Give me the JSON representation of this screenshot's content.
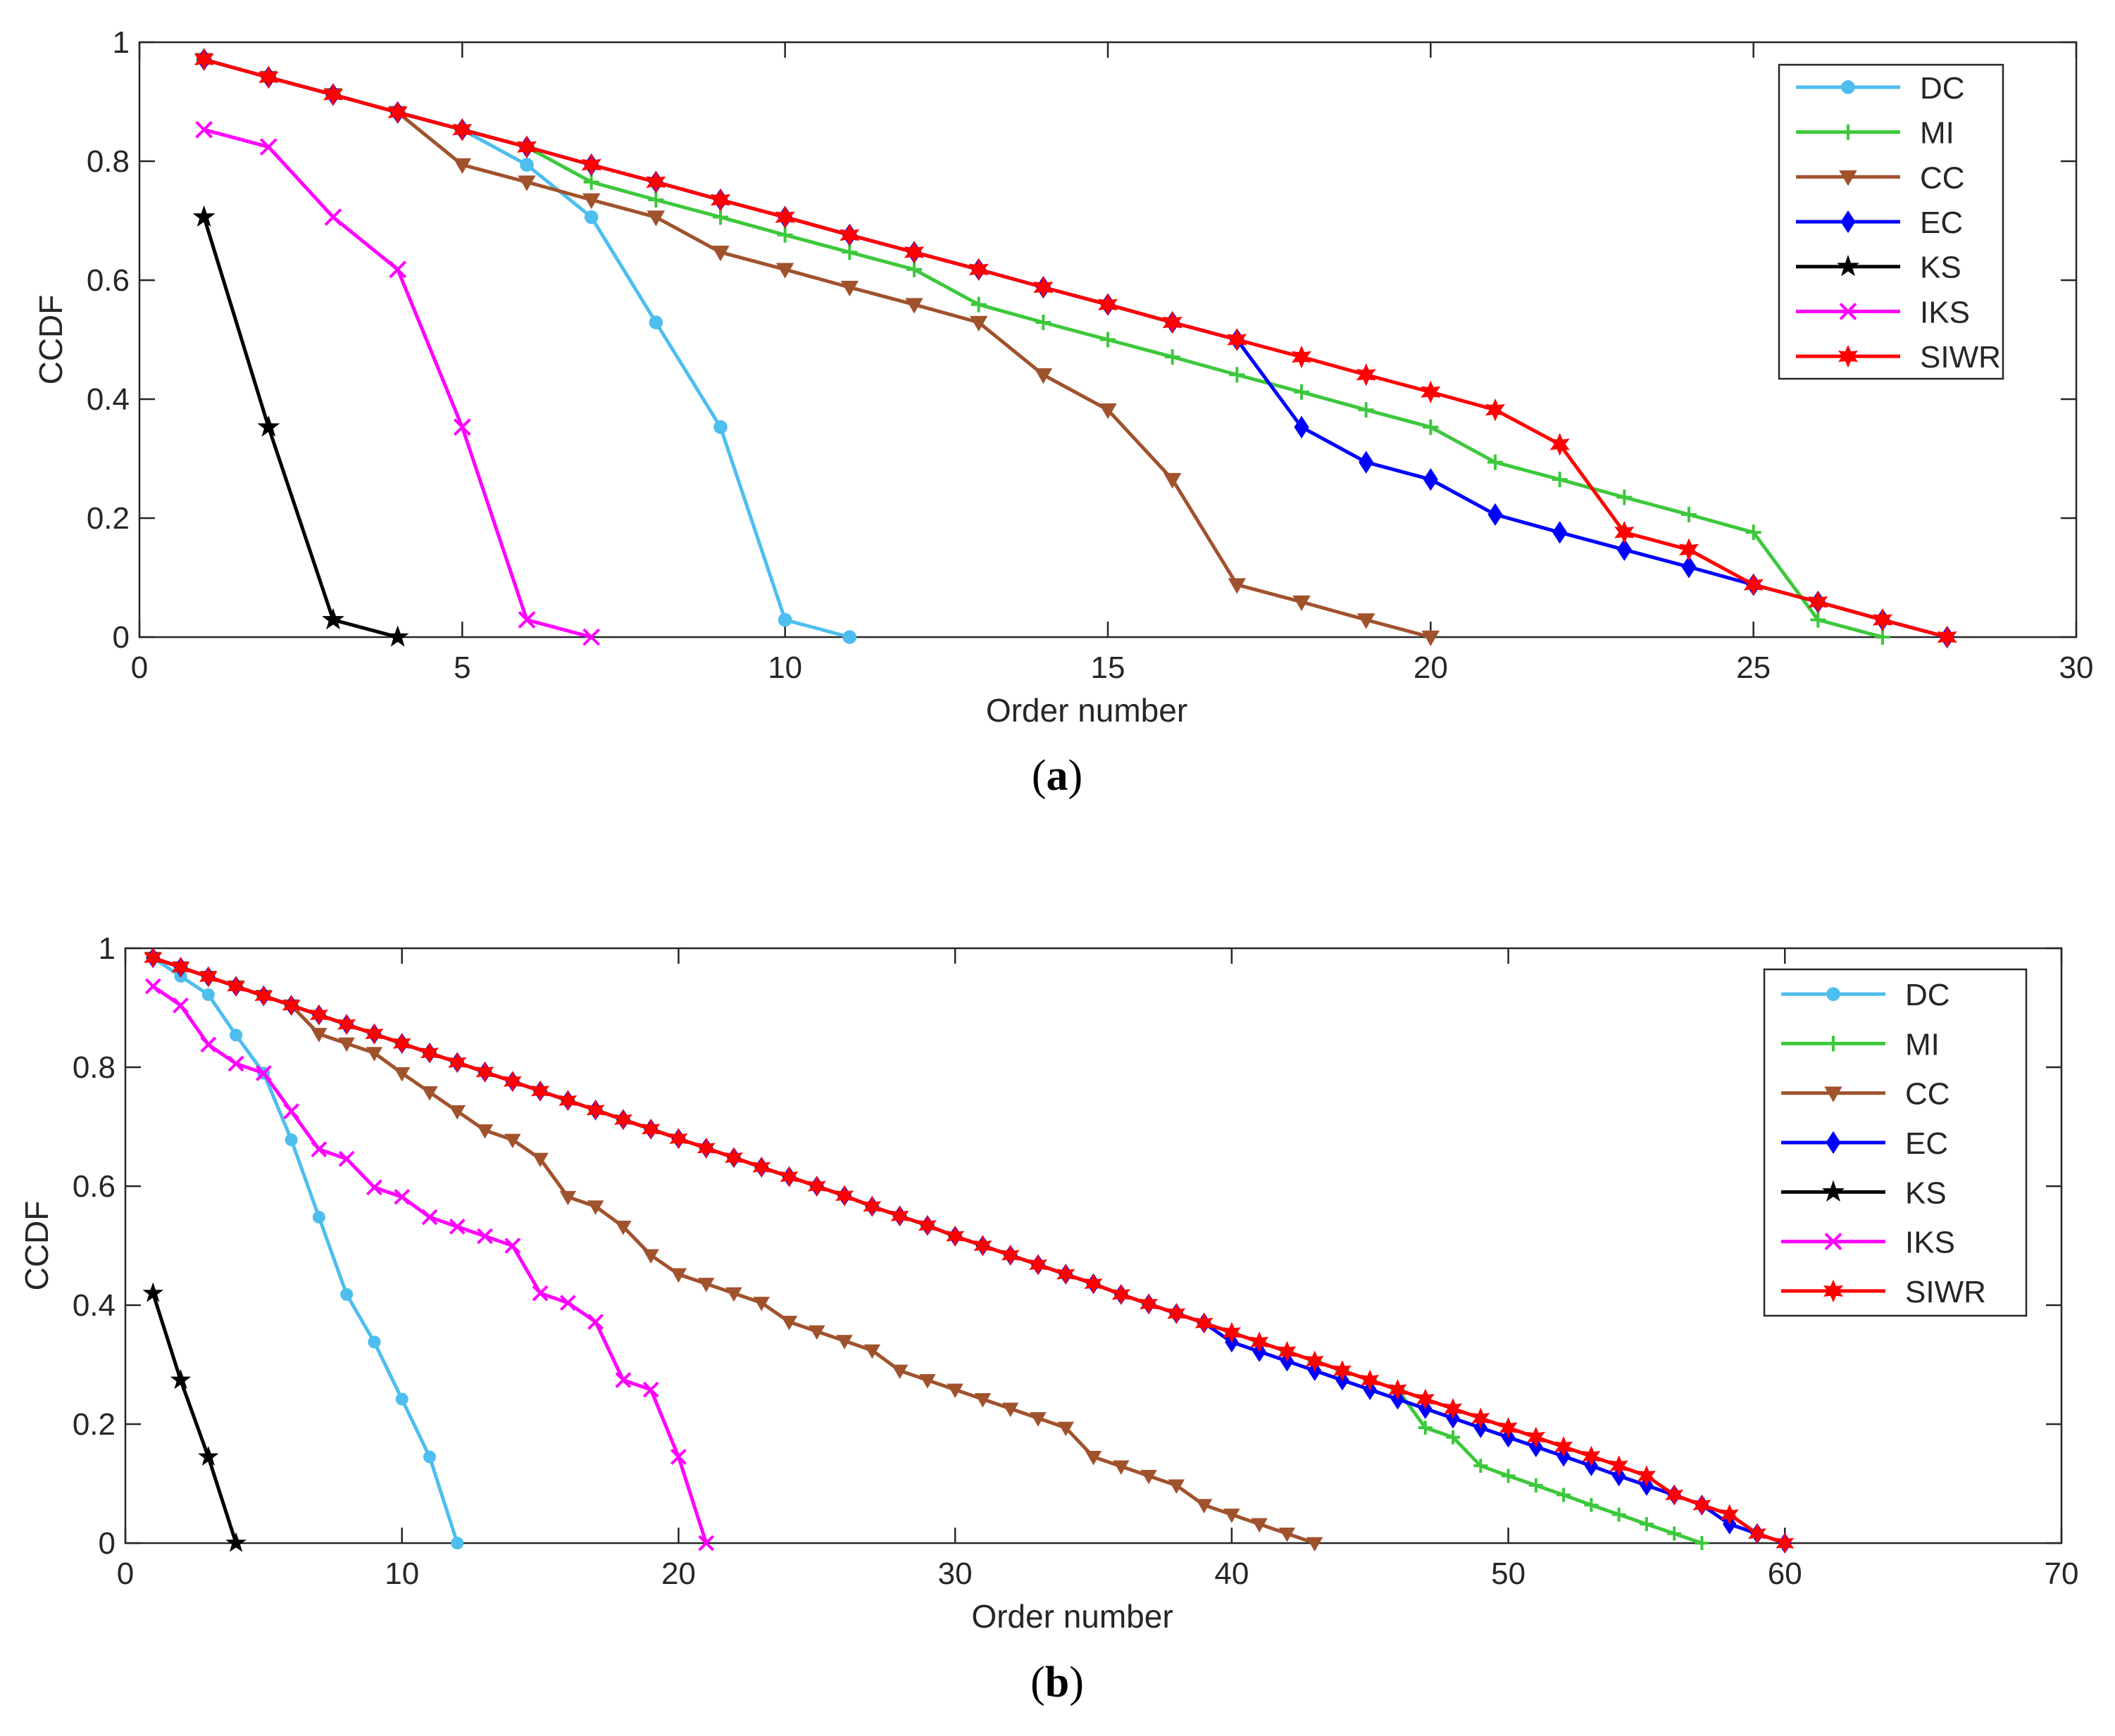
{
  "series_style": {
    "DC": {
      "color": "#4DBEEE",
      "marker": "circle"
    },
    "MI": {
      "color": "#3CC83C",
      "marker": "plus"
    },
    "CC": {
      "color": "#A0522D",
      "marker": "triangle-down"
    },
    "EC": {
      "color": "#0000FF",
      "marker": "diamond"
    },
    "KS": {
      "color": "#000000",
      "marker": "star"
    },
    "IKS": {
      "color": "#FF00FF",
      "marker": "cross"
    },
    "SIWR": {
      "color": "#FF0000",
      "marker": "hexagram"
    }
  },
  "chart_data": [
    {
      "type": "line",
      "panel_label": "(a)",
      "xlabel": "Order number",
      "ylabel": "CCDF",
      "xlim": [
        0,
        30
      ],
      "ylim": [
        0,
        1
      ],
      "xticks": [
        0,
        5,
        10,
        15,
        20,
        25,
        30
      ],
      "yticks": [
        0,
        0.2,
        0.4,
        0.6,
        0.8,
        1
      ],
      "ytick_labels": [
        "0",
        "0.2",
        "0.4",
        "0.6",
        "0.8",
        "1"
      ],
      "legend_position": "top-right",
      "series": [
        {
          "name": "DC",
          "x": [
            1,
            2,
            3,
            4,
            5,
            6,
            7,
            8,
            9,
            10,
            11
          ],
          "values": [
            0.971,
            0.941,
            0.912,
            0.882,
            0.853,
            0.794,
            0.706,
            0.529,
            0.353,
            0.029,
            0.0
          ]
        },
        {
          "name": "MI",
          "x": [
            1,
            2,
            3,
            4,
            5,
            6,
            7,
            8,
            9,
            10,
            11,
            12,
            13,
            14,
            15,
            16,
            17,
            18,
            19,
            20,
            21,
            22,
            23,
            24,
            25,
            26,
            27
          ],
          "values": [
            0.971,
            0.941,
            0.912,
            0.882,
            0.853,
            0.824,
            0.765,
            0.735,
            0.706,
            0.676,
            0.647,
            0.618,
            0.559,
            0.529,
            0.5,
            0.471,
            0.441,
            0.412,
            0.382,
            0.353,
            0.294,
            0.265,
            0.235,
            0.206,
            0.176,
            0.029,
            0.0
          ]
        },
        {
          "name": "CC",
          "x": [
            1,
            2,
            3,
            4,
            5,
            6,
            7,
            8,
            9,
            10,
            11,
            12,
            13,
            14,
            15,
            16,
            17,
            18,
            19,
            20
          ],
          "values": [
            0.971,
            0.941,
            0.912,
            0.882,
            0.794,
            0.765,
            0.735,
            0.706,
            0.647,
            0.618,
            0.588,
            0.559,
            0.529,
            0.441,
            0.382,
            0.265,
            0.088,
            0.059,
            0.029,
            0.0
          ]
        },
        {
          "name": "EC",
          "x": [
            1,
            2,
            3,
            4,
            5,
            6,
            7,
            8,
            9,
            10,
            11,
            12,
            13,
            14,
            15,
            16,
            17,
            18,
            19,
            20,
            21,
            22,
            23,
            24,
            25,
            26,
            27,
            28
          ],
          "values": [
            0.971,
            0.941,
            0.912,
            0.882,
            0.853,
            0.824,
            0.794,
            0.765,
            0.735,
            0.706,
            0.676,
            0.647,
            0.618,
            0.588,
            0.559,
            0.529,
            0.5,
            0.353,
            0.294,
            0.265,
            0.206,
            0.176,
            0.147,
            0.118,
            0.088,
            0.059,
            0.029,
            0.0
          ]
        },
        {
          "name": "KS",
          "x": [
            1,
            2,
            3,
            4
          ],
          "values": [
            0.706,
            0.353,
            0.029,
            0.0
          ]
        },
        {
          "name": "IKS",
          "x": [
            1,
            2,
            3,
            4,
            5,
            6,
            7
          ],
          "values": [
            0.853,
            0.824,
            0.706,
            0.618,
            0.353,
            0.029,
            0.0
          ]
        },
        {
          "name": "SIWR",
          "x": [
            1,
            2,
            3,
            4,
            5,
            6,
            7,
            8,
            9,
            10,
            11,
            12,
            13,
            14,
            15,
            16,
            17,
            18,
            19,
            20,
            21,
            22,
            23,
            24,
            25,
            26,
            27,
            28
          ],
          "values": [
            0.971,
            0.941,
            0.912,
            0.882,
            0.853,
            0.824,
            0.794,
            0.765,
            0.735,
            0.706,
            0.676,
            0.647,
            0.618,
            0.588,
            0.559,
            0.529,
            0.5,
            0.471,
            0.441,
            0.412,
            0.382,
            0.324,
            0.176,
            0.147,
            0.088,
            0.059,
            0.029,
            0.0
          ]
        }
      ]
    },
    {
      "type": "line",
      "panel_label": "(b)",
      "xlabel": "Order number",
      "ylabel": "CCDF",
      "xlim": [
        0,
        70
      ],
      "ylim": [
        0,
        1
      ],
      "xticks": [
        0,
        10,
        20,
        30,
        40,
        50,
        60,
        70
      ],
      "yticks": [
        0,
        0.2,
        0.4,
        0.6,
        0.8,
        1
      ],
      "ytick_labels": [
        "0",
        "0.2",
        "0.4",
        "0.6",
        "0.8",
        "1"
      ],
      "legend_position": "top-right",
      "series": [
        {
          "name": "DC",
          "x": [
            1,
            2,
            3,
            4,
            5,
            6,
            7,
            8,
            9,
            10,
            11,
            12
          ],
          "values": [
            0.984,
            0.953,
            0.922,
            0.854,
            0.79,
            0.678,
            0.548,
            0.418,
            0.338,
            0.242,
            0.145,
            0.0
          ]
        },
        {
          "name": "MI",
          "x": [
            1,
            2,
            3,
            4,
            5,
            6,
            7,
            8,
            9,
            10,
            11,
            12,
            13,
            14,
            15,
            16,
            17,
            18,
            19,
            20,
            21,
            22,
            23,
            24,
            25,
            26,
            27,
            28,
            29,
            30,
            31,
            32,
            33,
            34,
            35,
            36,
            37,
            38,
            39,
            40,
            41,
            42,
            43,
            44,
            45,
            46,
            47,
            48,
            49,
            50,
            51,
            52,
            53,
            54,
            55,
            56,
            57
          ],
          "values": [
            0.984,
            0.968,
            0.952,
            0.936,
            0.92,
            0.904,
            0.888,
            0.872,
            0.856,
            0.84,
            0.824,
            0.808,
            0.792,
            0.776,
            0.76,
            0.744,
            0.728,
            0.712,
            0.696,
            0.68,
            0.664,
            0.648,
            0.632,
            0.616,
            0.6,
            0.584,
            0.566,
            0.55,
            0.534,
            0.516,
            0.5,
            0.484,
            0.468,
            0.452,
            0.436,
            0.418,
            0.402,
            0.386,
            0.37,
            0.354,
            0.338,
            0.322,
            0.306,
            0.29,
            0.274,
            0.258,
            0.194,
            0.178,
            0.13,
            0.113,
            0.097,
            0.081,
            0.064,
            0.048,
            0.032,
            0.016,
            0.0
          ]
        },
        {
          "name": "CC",
          "x": [
            1,
            2,
            3,
            4,
            5,
            6,
            7,
            8,
            9,
            10,
            11,
            12,
            13,
            14,
            15,
            16,
            17,
            18,
            19,
            20,
            21,
            22,
            23,
            24,
            25,
            26,
            27,
            28,
            29,
            30,
            31,
            32,
            33,
            34,
            35,
            36,
            37,
            38,
            39,
            40,
            41,
            42,
            43
          ],
          "values": [
            0.984,
            0.968,
            0.952,
            0.936,
            0.92,
            0.904,
            0.856,
            0.84,
            0.824,
            0.79,
            0.758,
            0.726,
            0.694,
            0.678,
            0.646,
            0.582,
            0.566,
            0.532,
            0.484,
            0.452,
            0.436,
            0.42,
            0.404,
            0.372,
            0.356,
            0.34,
            0.324,
            0.29,
            0.274,
            0.258,
            0.242,
            0.226,
            0.21,
            0.194,
            0.145,
            0.129,
            0.113,
            0.097,
            0.064,
            0.048,
            0.032,
            0.016,
            0.0
          ]
        },
        {
          "name": "EC",
          "x": [
            1,
            2,
            3,
            4,
            5,
            6,
            7,
            8,
            9,
            10,
            11,
            12,
            13,
            14,
            15,
            16,
            17,
            18,
            19,
            20,
            21,
            22,
            23,
            24,
            25,
            26,
            27,
            28,
            29,
            30,
            31,
            32,
            33,
            34,
            35,
            36,
            37,
            38,
            39,
            40,
            41,
            42,
            43,
            44,
            45,
            46,
            47,
            48,
            49,
            50,
            51,
            52,
            53,
            54,
            55,
            56,
            57,
            58,
            59,
            60
          ],
          "values": [
            0.984,
            0.968,
            0.952,
            0.936,
            0.92,
            0.904,
            0.888,
            0.872,
            0.856,
            0.84,
            0.824,
            0.808,
            0.792,
            0.776,
            0.76,
            0.744,
            0.728,
            0.712,
            0.696,
            0.68,
            0.664,
            0.648,
            0.632,
            0.616,
            0.6,
            0.584,
            0.566,
            0.55,
            0.534,
            0.516,
            0.5,
            0.484,
            0.468,
            0.452,
            0.436,
            0.418,
            0.402,
            0.386,
            0.37,
            0.338,
            0.322,
            0.306,
            0.29,
            0.274,
            0.258,
            0.242,
            0.226,
            0.21,
            0.194,
            0.178,
            0.162,
            0.146,
            0.13,
            0.113,
            0.097,
            0.081,
            0.064,
            0.032,
            0.016,
            0.0
          ]
        },
        {
          "name": "KS",
          "x": [
            1,
            2,
            3,
            4
          ],
          "values": [
            0.42,
            0.274,
            0.145,
            0.0
          ]
        },
        {
          "name": "IKS",
          "x": [
            1,
            2,
            3,
            4,
            5,
            6,
            7,
            8,
            9,
            10,
            11,
            12,
            13,
            14,
            15,
            16,
            17,
            18,
            19,
            20,
            21
          ],
          "values": [
            0.936,
            0.904,
            0.838,
            0.806,
            0.79,
            0.726,
            0.662,
            0.646,
            0.598,
            0.582,
            0.548,
            0.532,
            0.516,
            0.5,
            0.42,
            0.404,
            0.372,
            0.274,
            0.258,
            0.145,
            0.0
          ]
        },
        {
          "name": "SIWR",
          "x": [
            1,
            2,
            3,
            4,
            5,
            6,
            7,
            8,
            9,
            10,
            11,
            12,
            13,
            14,
            15,
            16,
            17,
            18,
            19,
            20,
            21,
            22,
            23,
            24,
            25,
            26,
            27,
            28,
            29,
            30,
            31,
            32,
            33,
            34,
            35,
            36,
            37,
            38,
            39,
            40,
            41,
            42,
            43,
            44,
            45,
            46,
            47,
            48,
            49,
            50,
            51,
            52,
            53,
            54,
            55,
            56,
            57,
            58,
            59,
            60
          ],
          "values": [
            0.984,
            0.968,
            0.952,
            0.936,
            0.92,
            0.904,
            0.888,
            0.872,
            0.856,
            0.84,
            0.824,
            0.808,
            0.792,
            0.776,
            0.76,
            0.744,
            0.728,
            0.712,
            0.696,
            0.68,
            0.664,
            0.648,
            0.632,
            0.616,
            0.6,
            0.584,
            0.566,
            0.55,
            0.534,
            0.516,
            0.5,
            0.484,
            0.468,
            0.452,
            0.436,
            0.418,
            0.402,
            0.386,
            0.37,
            0.354,
            0.338,
            0.322,
            0.306,
            0.29,
            0.274,
            0.258,
            0.242,
            0.226,
            0.21,
            0.194,
            0.178,
            0.162,
            0.146,
            0.13,
            0.113,
            0.081,
            0.064,
            0.048,
            0.016,
            0.0
          ]
        }
      ]
    }
  ]
}
